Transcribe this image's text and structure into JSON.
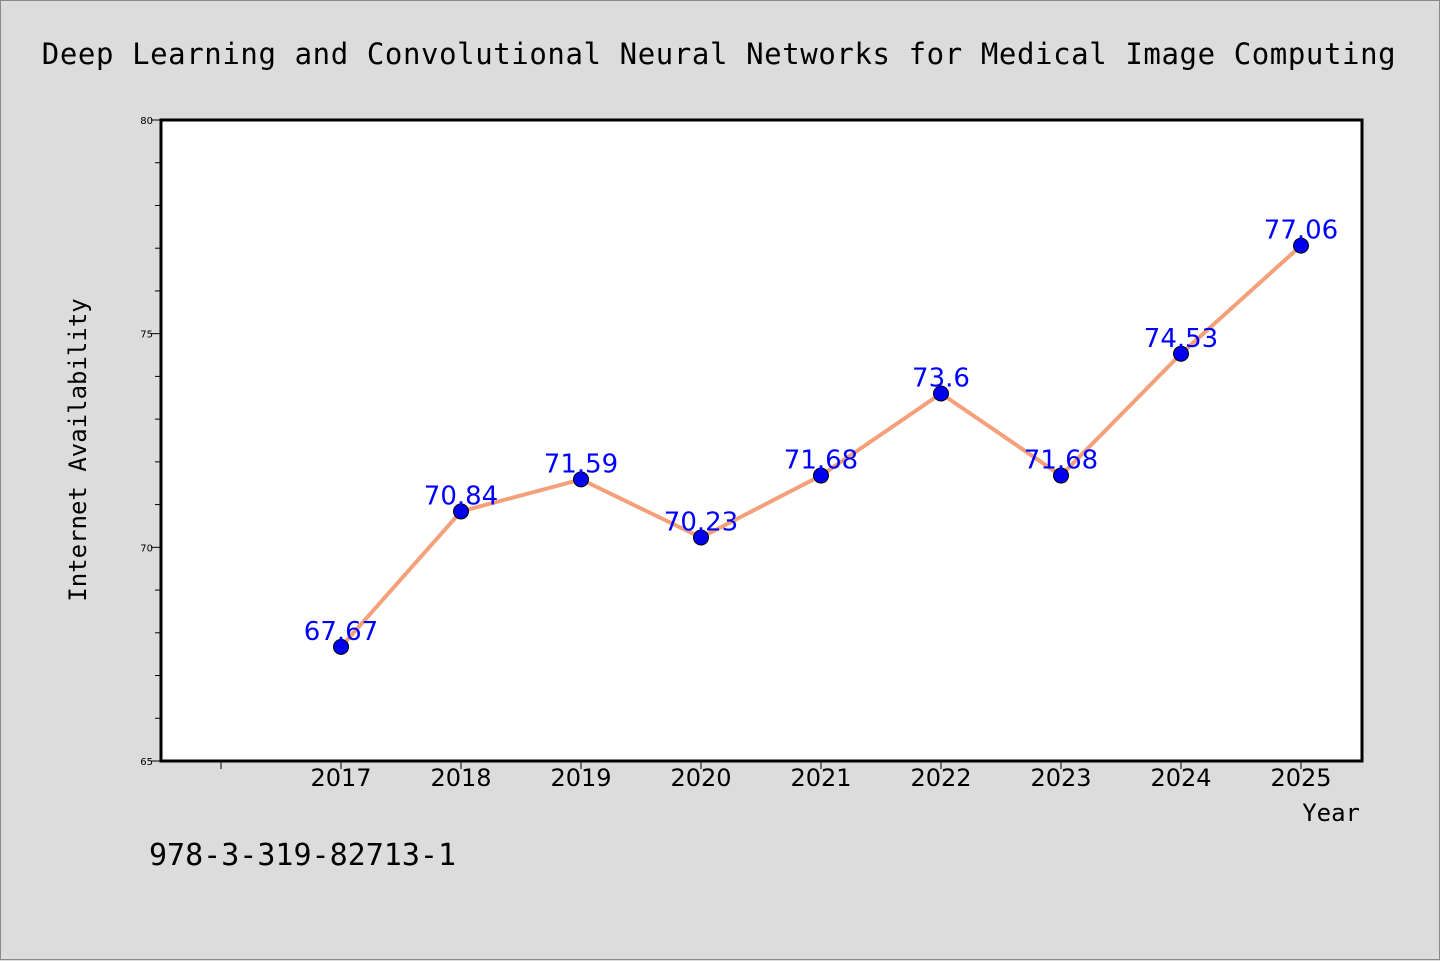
{
  "chart_data": {
    "type": "line",
    "title": "Deep Learning and Convolutional Neural Networks for Medical Image Computing",
    "xlabel": "Year",
    "ylabel": "Internet Availability",
    "categories": [
      "2017",
      "2018",
      "2019",
      "2020",
      "2021",
      "2022",
      "2023",
      "2024",
      "2025"
    ],
    "series": [
      {
        "values": [
          67.67,
          70.84,
          71.59,
          70.23,
          71.68,
          73.6,
          71.68,
          74.53,
          77.06
        ],
        "labels": [
          "67.67",
          "70.84",
          "71.59",
          "70.23",
          "71.68",
          "73.6",
          "71.68",
          "74.53",
          "77.06"
        ]
      }
    ],
    "ylim": [
      65,
      80
    ],
    "yticks": [
      "65",
      "70",
      "75",
      "80"
    ],
    "grid": false,
    "line_color": "#f4a07a",
    "marker_color": "#0000ee",
    "label_color": "#0000ff"
  },
  "footer": {
    "isbn": "978-3-319-82713-1"
  }
}
